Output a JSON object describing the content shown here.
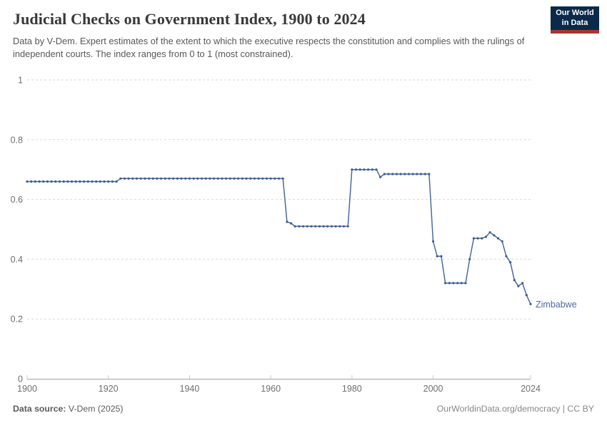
{
  "header": {
    "title": "Judicial Checks on Government Index, 1900 to 2024",
    "subtitle": "Data by V-Dem. Expert estimates of the extent to which the executive respects the constitution and complies with the rulings of independent courts. The index ranges from 0 to 1 (most constrained).",
    "logo_line1": "Our World",
    "logo_line2": "in Data"
  },
  "footer": {
    "source_label": "Data source:",
    "source_value": "V-Dem (2025)",
    "attribution": "OurWorldinData.org/democracy | CC BY"
  },
  "colors": {
    "line": "#4C6A9C",
    "marker": "#3A5E8F",
    "entity_label": "#4C6A9C",
    "grid": "#DADADA",
    "axis": "#A3A3A3",
    "tick": "#CCCCCC",
    "axis_text": "#6E6E6E",
    "logo_bg": "#0B2A4A",
    "logo_red": "#A8352E"
  },
  "chart_data": {
    "type": "line",
    "title": "Judicial Checks on Government Index, 1900 to 2024",
    "xlabel": "",
    "ylabel": "",
    "xlim": [
      1900,
      2024
    ],
    "ylim": [
      0,
      1
    ],
    "x_ticks": [
      1900,
      1920,
      1940,
      1960,
      1980,
      2000,
      2024
    ],
    "y_ticks": [
      0,
      0.2,
      0.4,
      0.6,
      0.8,
      1
    ],
    "grid": "horizontal-dashed",
    "legend_position": "end-of-line-label",
    "series": [
      {
        "name": "Zimbabwe",
        "start_year": 1900,
        "end_year": 2024,
        "values": [
          0.66,
          0.66,
          0.66,
          0.66,
          0.66,
          0.66,
          0.66,
          0.66,
          0.66,
          0.66,
          0.66,
          0.66,
          0.66,
          0.66,
          0.66,
          0.66,
          0.66,
          0.66,
          0.66,
          0.66,
          0.66,
          0.66,
          0.66,
          0.67,
          0.67,
          0.67,
          0.67,
          0.67,
          0.67,
          0.67,
          0.67,
          0.67,
          0.67,
          0.67,
          0.67,
          0.67,
          0.67,
          0.67,
          0.67,
          0.67,
          0.67,
          0.67,
          0.67,
          0.67,
          0.67,
          0.67,
          0.67,
          0.67,
          0.67,
          0.67,
          0.67,
          0.67,
          0.67,
          0.67,
          0.67,
          0.67,
          0.67,
          0.67,
          0.67,
          0.67,
          0.67,
          0.67,
          0.67,
          0.67,
          0.525,
          0.52,
          0.51,
          0.51,
          0.51,
          0.51,
          0.51,
          0.51,
          0.51,
          0.51,
          0.51,
          0.51,
          0.51,
          0.51,
          0.51,
          0.51,
          0.7,
          0.7,
          0.7,
          0.7,
          0.7,
          0.7,
          0.7,
          0.675,
          0.685,
          0.685,
          0.685,
          0.685,
          0.685,
          0.685,
          0.685,
          0.685,
          0.685,
          0.685,
          0.685,
          0.685,
          0.46,
          0.41,
          0.41,
          0.32,
          0.32,
          0.32,
          0.32,
          0.32,
          0.32,
          0.4,
          0.47,
          0.47,
          0.47,
          0.475,
          0.49,
          0.48,
          0.47,
          0.46,
          0.41,
          0.39,
          0.33,
          0.31,
          0.32,
          0.28,
          0.25
        ]
      }
    ]
  }
}
